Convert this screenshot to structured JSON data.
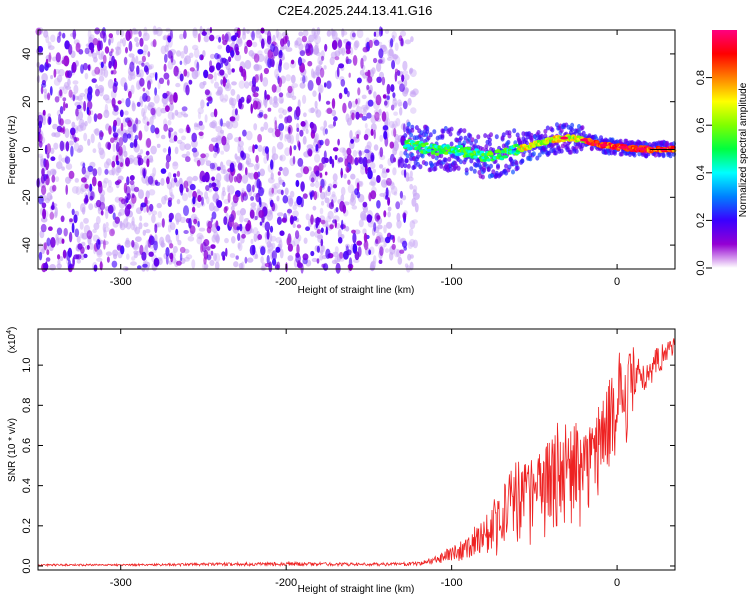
{
  "title": "C2E4.2025.244.13.41.G16",
  "chart_data": [
    {
      "type": "heatmap",
      "name": "spectrogram",
      "xlabel": "Height of straight line (km)",
      "ylabel": "Frequency (Hz)",
      "xlim": [
        -350,
        35
      ],
      "ylim": [
        -50,
        50
      ],
      "xticks": [
        -300,
        -200,
        -100,
        0
      ],
      "yticks": [
        -40,
        -20,
        0,
        20,
        40
      ],
      "noise_region_x": [
        -350,
        -128
      ],
      "signal_region_x": [
        -128,
        35
      ],
      "signal_ridge": {
        "x": [
          -128,
          -120,
          -110,
          -100,
          -90,
          -80,
          -70,
          -60,
          -50,
          -40,
          -30,
          -20,
          -10,
          0,
          10,
          20,
          35
        ],
        "freq": [
          2,
          1,
          0,
          0,
          -1,
          -3,
          -2,
          0,
          2,
          4,
          5,
          4,
          2,
          1,
          0.5,
          0,
          0
        ]
      },
      "colorbar": {
        "label": "Normalized spectral amplitude",
        "range": [
          0,
          1
        ],
        "ticks": [
          "0.0",
          "0.2",
          "0.4",
          "0.6",
          "0.8"
        ],
        "tick_values": [
          0,
          0.2,
          0.4,
          0.6,
          0.8
        ],
        "colors": [
          "#ffffff",
          "#9400d3",
          "#3a00ff",
          "#0080ff",
          "#00ffff",
          "#00ff40",
          "#80ff00",
          "#ffff00",
          "#ff8000",
          "#ff0000",
          "#ff0080"
        ]
      }
    },
    {
      "type": "line",
      "name": "snr",
      "xlabel": "Height of straight line (km)",
      "ylabel": "SNR (10 * v/v)",
      "scale_label": "(x10",
      "scale_exponent": "4",
      "scale_close": ")",
      "xlim": [
        -350,
        35
      ],
      "ylim": [
        -0.02,
        1.18
      ],
      "xticks": [
        -300,
        -200,
        -100,
        0
      ],
      "yticks": [
        "0.0",
        "0.2",
        "0.4",
        "0.6",
        "0.8",
        "1.0"
      ],
      "ytick_values": [
        0,
        0.2,
        0.4,
        0.6,
        0.8,
        1.0
      ],
      "color": "#ee2222",
      "series": [
        {
          "name": "SNR",
          "x": [
            -350,
            -300,
            -250,
            -200,
            -150,
            -120,
            -110,
            -100,
            -90,
            -80,
            -70,
            -60,
            -50,
            -40,
            -30,
            -20,
            -10,
            0,
            5,
            10,
            15,
            20,
            25,
            30,
            35
          ],
          "envelope": [
            0.01,
            0.01,
            0.015,
            0.02,
            0.015,
            0.02,
            0.05,
            0.1,
            0.15,
            0.25,
            0.4,
            0.55,
            0.5,
            0.65,
            0.75,
            0.65,
            0.85,
            1.0,
            1.05,
            1.1,
            1.0,
            1.05,
            1.1,
            1.13,
            1.15
          ],
          "floor": [
            0,
            0,
            0,
            0,
            0,
            0,
            0.01,
            0.02,
            0.03,
            0.05,
            0.05,
            0.08,
            0.1,
            0.15,
            0.15,
            0.2,
            0.35,
            0.55,
            0.6,
            0.7,
            0.8,
            0.9,
            0.95,
            1.0,
            1.05
          ]
        }
      ]
    }
  ]
}
